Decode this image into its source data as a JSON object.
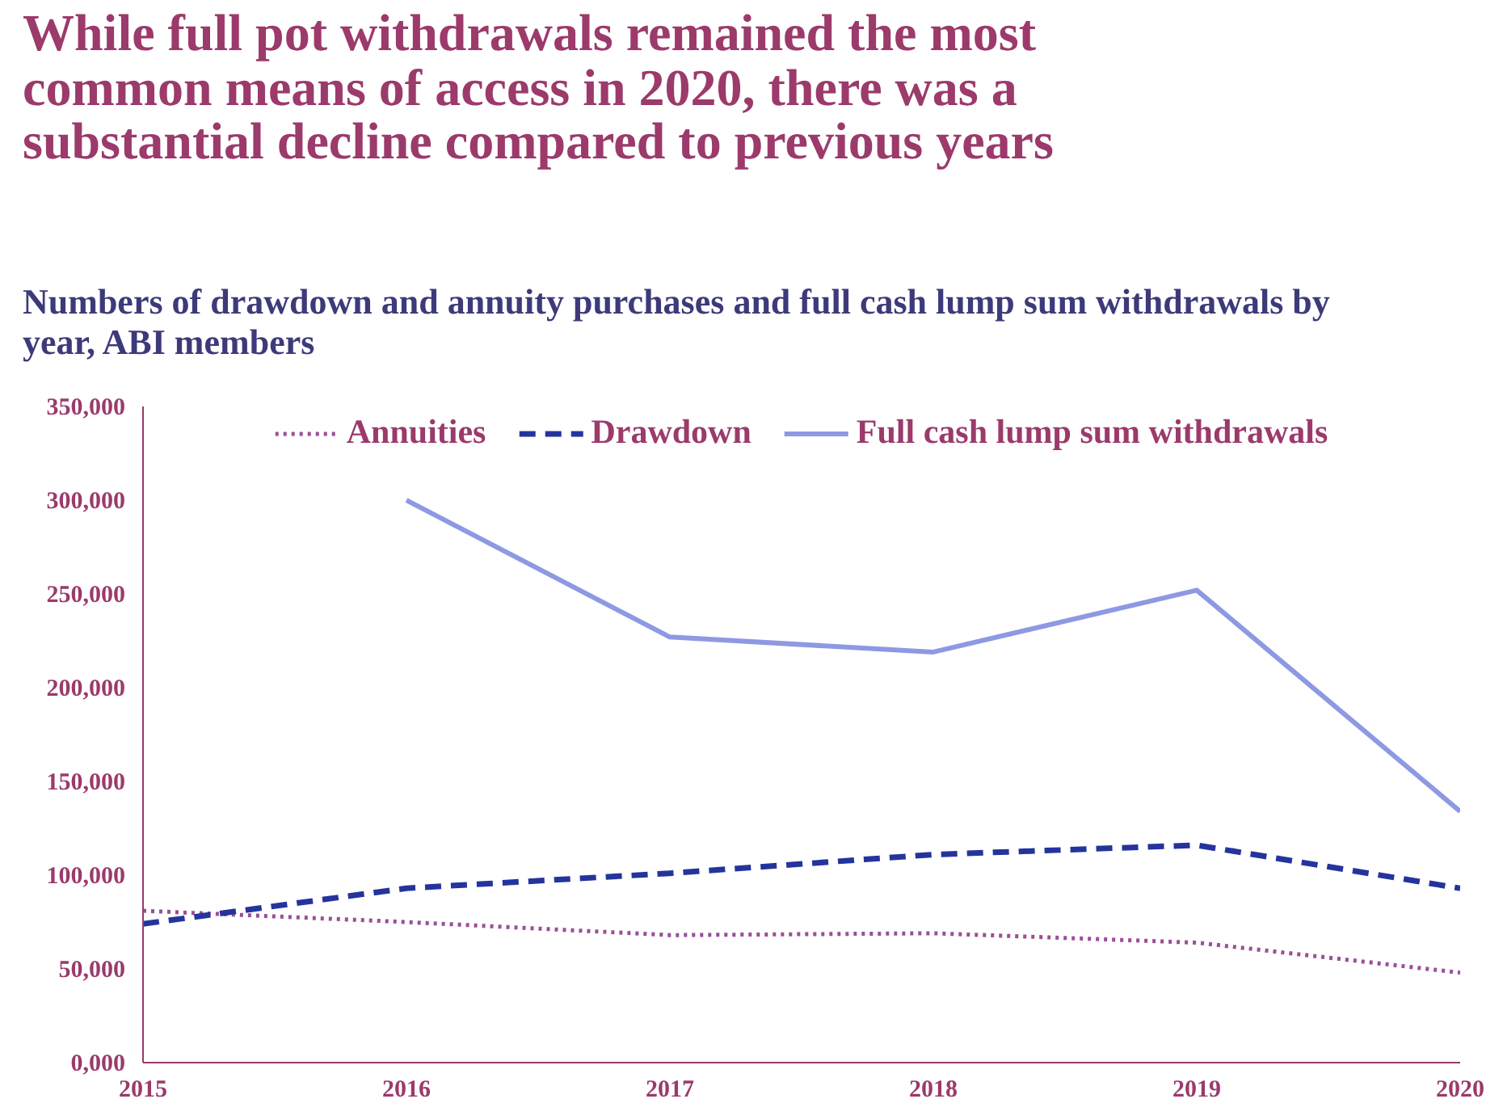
{
  "chart_data": {
    "type": "line",
    "title": "While full pot withdrawals remained the most common means of access in 2020, there was a substantial decline compared to previous years",
    "subtitle": "Numbers of drawdown and annuity purchases and full cash lump sum withdrawals by year, ABI members",
    "x": [
      2015,
      2016,
      2017,
      2018,
      2019,
      2020
    ],
    "xlim": [
      2015,
      2020
    ],
    "xticks": [
      2015,
      2016,
      2017,
      2018,
      2019,
      2020
    ],
    "ylim": [
      0,
      350000
    ],
    "yticks": [
      {
        "value": 0,
        "label": "0,000"
      },
      {
        "value": 50000,
        "label": "50,000"
      },
      {
        "value": 100000,
        "label": "100,000"
      },
      {
        "value": 150000,
        "label": "150,000"
      },
      {
        "value": 200000,
        "label": "200,000"
      },
      {
        "value": 250000,
        "label": "250,000"
      },
      {
        "value": 300000,
        "label": "300,000"
      },
      {
        "value": 350000,
        "label": "350,000"
      }
    ],
    "grid": false,
    "legend": "top",
    "series": [
      {
        "name": "Annuities",
        "color": "#9b4f96",
        "line_style": "dotted",
        "values": [
          81000,
          75000,
          68000,
          69000,
          64000,
          48000
        ]
      },
      {
        "name": "Drawdown",
        "color": "#25349c",
        "line_style": "dashed",
        "values": [
          74000,
          93000,
          101000,
          111000,
          116000,
          93000
        ]
      },
      {
        "name": "Full cash lump sum withdrawals",
        "color": "#8e99e3",
        "line_style": "solid",
        "values": [
          null,
          300000,
          227000,
          219000,
          252000,
          134000
        ]
      }
    ]
  }
}
